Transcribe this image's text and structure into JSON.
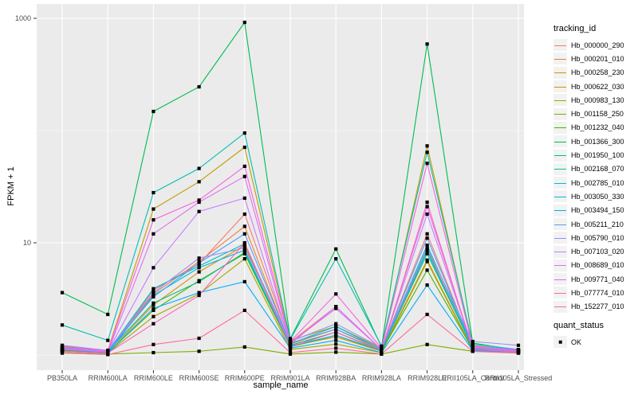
{
  "chart_data": {
    "type": "line",
    "title": "",
    "xlabel": "sample_name",
    "ylabel": "FPKM + 1",
    "y_scale": "log10",
    "y_major_ticks": [
      10,
      1000
    ],
    "y_minor_gridlines": [
      1,
      100
    ],
    "grid": true,
    "legend_position": "right",
    "point_shape": "square",
    "point_color": "#000000",
    "categories": [
      "PB350LA",
      "RRIM600LA",
      "RRIM600LE",
      "RRIM600SE",
      "RRIM600PE",
      "RRIM901LA",
      "RRIM928BA",
      "RRIM928LA",
      "RRIM928LE",
      "RRII105LA_Control",
      "RRII105LA_Stressed"
    ],
    "series": [
      {
        "name": "Hb_000000_290",
        "color": "#F8766D",
        "values": [
          1.1,
          1.05,
          3.8,
          6.5,
          18,
          1.3,
          2.7,
          1.12,
          12,
          1.18,
          1.1
        ]
      },
      {
        "name": "Hb_000201_010",
        "color": "#EC8238",
        "values": [
          1.12,
          1.06,
          3.5,
          6.8,
          14,
          1.25,
          1.7,
          1.1,
          8.8,
          1.15,
          1.08
        ]
      },
      {
        "name": "Hb_000258_230",
        "color": "#DA8F00",
        "values": [
          1.08,
          1.04,
          2.8,
          5.5,
          9.5,
          1.2,
          1.45,
          1.08,
          7.0,
          1.12,
          1.06
        ]
      },
      {
        "name": "Hb_000622_030",
        "color": "#C39B00",
        "values": [
          1.2,
          1.1,
          20,
          35,
          71,
          1.35,
          1.8,
          1.15,
          73,
          1.22,
          1.1
        ]
      },
      {
        "name": "Hb_000983_130",
        "color": "#A5A500",
        "values": [
          1.08,
          1.04,
          2.2,
          3.5,
          7.2,
          1.12,
          1.25,
          1.05,
          6.8,
          1.1,
          1.05
        ]
      },
      {
        "name": "Hb_001158_250",
        "color": "#7CAE00",
        "values": [
          1.05,
          1.02,
          1.05,
          1.08,
          1.18,
          1.02,
          1.06,
          1.02,
          1.24,
          1.08,
          1.04
        ]
      },
      {
        "name": "Hb_001232_040",
        "color": "#45B500",
        "values": [
          1.1,
          1.05,
          2.5,
          4.6,
          8.0,
          1.18,
          1.5,
          1.08,
          5.7,
          1.12,
          1.06
        ]
      },
      {
        "name": "Hb_001366_300",
        "color": "#00BC51",
        "values": [
          3.6,
          2.3,
          148,
          245,
          920,
          1.4,
          8.8,
          1.18,
          590,
          1.28,
          1.1
        ]
      },
      {
        "name": "Hb_001950_100",
        "color": "#00BF7F",
        "values": [
          1.14,
          1.08,
          2.9,
          4.5,
          8.2,
          1.22,
          1.6,
          1.1,
          8.0,
          1.16,
          1.08
        ]
      },
      {
        "name": "Hb_002168_070",
        "color": "#00C0AF",
        "values": [
          1.85,
          1.35,
          28,
          46,
          95,
          1.38,
          7.2,
          1.2,
          64,
          1.25,
          1.12
        ]
      },
      {
        "name": "Hb_002785_010",
        "color": "#00BFC4",
        "values": [
          1.16,
          1.08,
          3.9,
          6.2,
          9.8,
          1.26,
          1.8,
          1.12,
          9.5,
          1.18,
          1.09
        ]
      },
      {
        "name": "Hb_003050_330",
        "color": "#00B9E3",
        "values": [
          1.12,
          1.05,
          3.4,
          6.0,
          8.6,
          1.2,
          1.5,
          1.09,
          8.5,
          1.14,
          1.06
        ]
      },
      {
        "name": "Hb_003494_150",
        "color": "#00ACFC",
        "values": [
          1.08,
          1.04,
          2.6,
          3.6,
          4.5,
          1.15,
          1.35,
          1.05,
          4.2,
          1.1,
          1.05
        ]
      },
      {
        "name": "Hb_005211_210",
        "color": "#4E9EFF",
        "values": [
          1.18,
          1.09,
          3.3,
          6.6,
          12,
          1.28,
          1.7,
          1.13,
          11,
          1.2,
          1.12
        ]
      },
      {
        "name": "Hb_005790_010",
        "color": "#9A8CFF",
        "values": [
          1.22,
          1.1,
          3.6,
          7.3,
          9.0,
          1.32,
          1.9,
          1.16,
          9.0,
          1.32,
          1.22
        ]
      },
      {
        "name": "Hb_007103_020",
        "color": "#C77CFF",
        "values": [
          1.15,
          1.08,
          6.0,
          19,
          25,
          1.25,
          2.7,
          1.12,
          18,
          1.18,
          1.1
        ]
      },
      {
        "name": "Hb_008689_010",
        "color": "#E26EF0",
        "values": [
          1.12,
          1.07,
          12,
          23,
          39,
          1.28,
          2.6,
          1.12,
          21,
          1.16,
          1.08
        ]
      },
      {
        "name": "Hb_009771_040",
        "color": "#F863DF",
        "values": [
          1.18,
          1.09,
          16,
          24,
          48,
          1.32,
          3.5,
          1.15,
          51,
          1.2,
          1.1
        ]
      },
      {
        "name": "Hb_077774_010",
        "color": "#FF63BC",
        "values": [
          1.08,
          1.04,
          1.9,
          3.4,
          10,
          1.18,
          1.6,
          1.08,
          23,
          1.12,
          1.06
        ]
      },
      {
        "name": "Hb_152277_010",
        "color": "#FF6B97",
        "values": [
          1.04,
          1.01,
          1.24,
          1.41,
          2.5,
          1.05,
          1.15,
          1.02,
          2.3,
          1.08,
          1.04
        ]
      }
    ]
  },
  "legend": {
    "tracking_title": "tracking_id",
    "quant_title": "quant_status",
    "quant_ok_label": "OK"
  },
  "styles": {
    "panel_bg": "#EBEBEB",
    "grid_color": "#FFFFFF",
    "axis_text_color": "#4D4D4D",
    "tick_mark_color": "#333333",
    "title_color": "#000000",
    "legend_key_bg": "#F2F2F2",
    "point_color": "#000000"
  }
}
